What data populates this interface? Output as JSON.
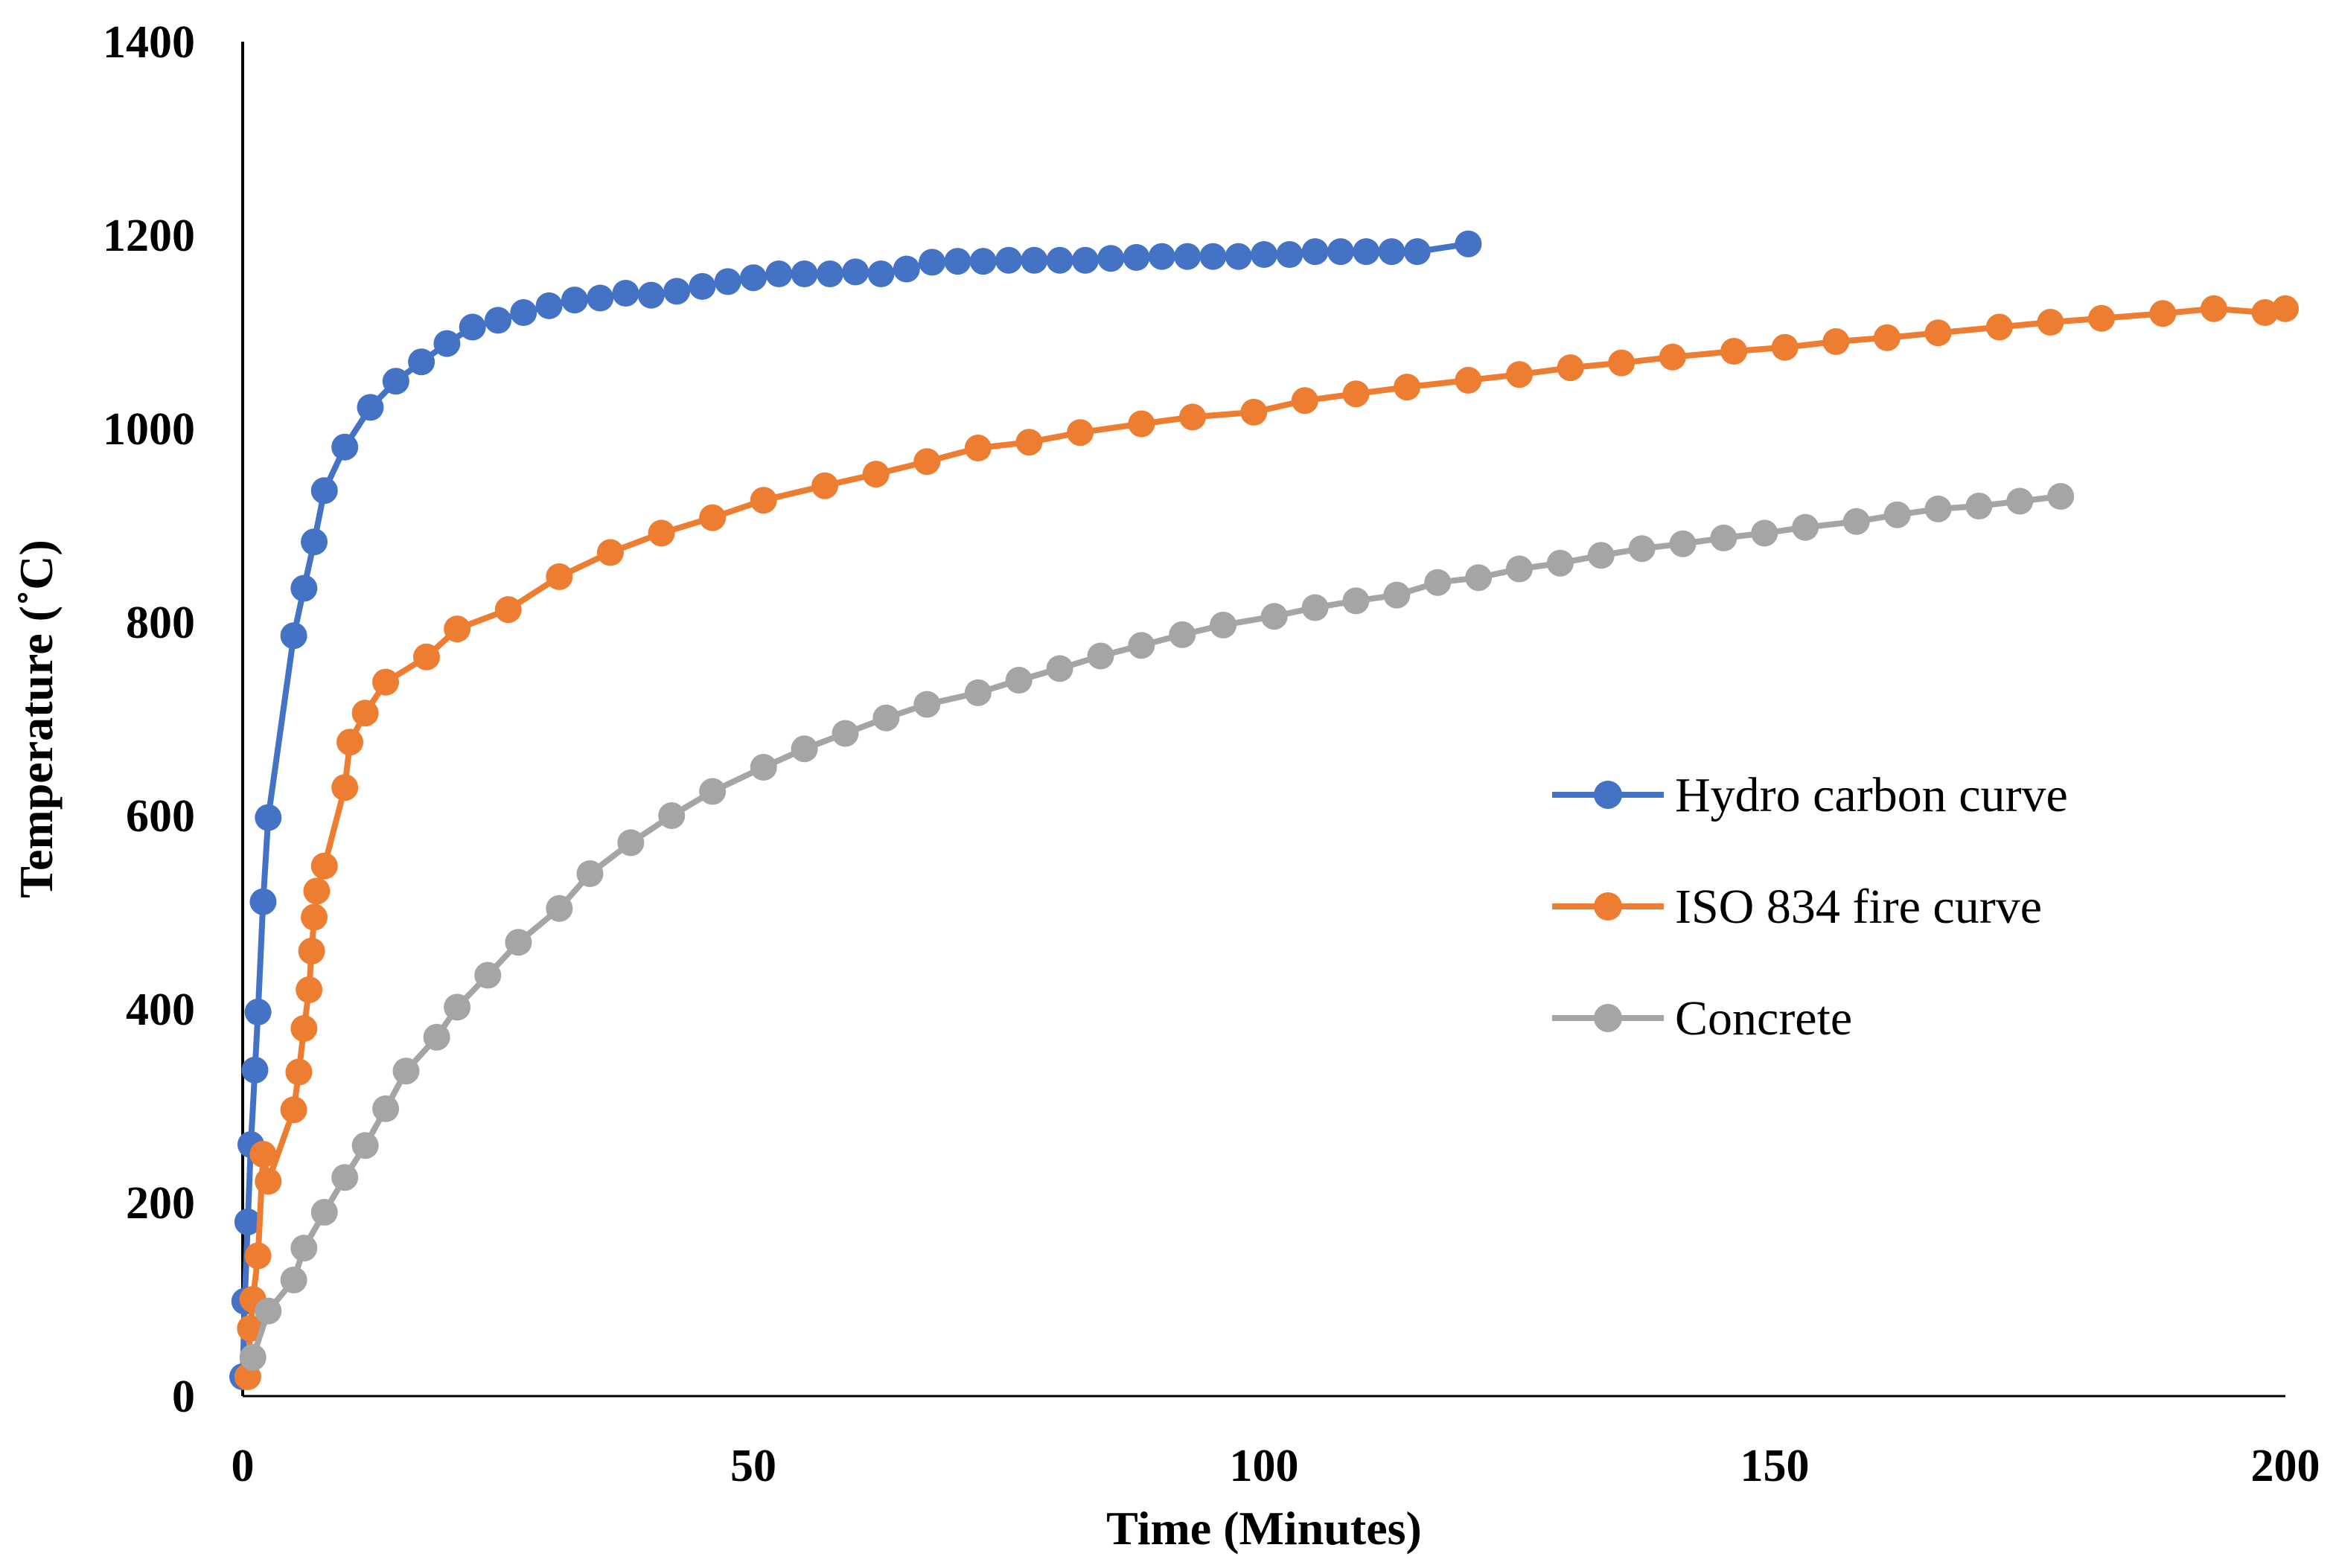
{
  "chart_data": {
    "type": "line",
    "xlabel": "Time (Minutes)",
    "ylabel": "Temperature (˚C)",
    "xlim": [
      0,
      200
    ],
    "ylim": [
      0,
      1400
    ],
    "x_ticks": [
      "0",
      "50",
      "100",
      "150",
      "200"
    ],
    "y_ticks": [
      "0",
      "200",
      "400",
      "600",
      "800",
      "1000",
      "1200",
      "1400"
    ],
    "grid": false,
    "legend_position": "right",
    "series": [
      {
        "name": "Hydro carbon curve",
        "color": "#4472C4",
        "points": [
          [
            0,
            20
          ],
          [
            0.2,
            98
          ],
          [
            0.5,
            180
          ],
          [
            0.8,
            260
          ],
          [
            1.2,
            337
          ],
          [
            1.5,
            397
          ],
          [
            2,
            511
          ],
          [
            2.5,
            598
          ],
          [
            5,
            786
          ],
          [
            6,
            835
          ],
          [
            7,
            883
          ],
          [
            8,
            936
          ],
          [
            10,
            981
          ],
          [
            12.5,
            1022
          ],
          [
            15,
            1049
          ],
          [
            17.5,
            1069
          ],
          [
            20,
            1088
          ],
          [
            22.5,
            1105
          ],
          [
            25,
            1112
          ],
          [
            27.5,
            1120
          ],
          [
            30,
            1127
          ],
          [
            32.5,
            1133
          ],
          [
            35,
            1135
          ],
          [
            37.5,
            1140
          ],
          [
            40,
            1138
          ],
          [
            42.5,
            1142
          ],
          [
            45,
            1147
          ],
          [
            47.5,
            1152
          ],
          [
            50,
            1156
          ],
          [
            52.5,
            1160
          ],
          [
            55,
            1160
          ],
          [
            57.5,
            1160
          ],
          [
            60,
            1162
          ],
          [
            62.5,
            1160
          ],
          [
            65,
            1165
          ],
          [
            67.5,
            1172
          ],
          [
            70,
            1173
          ],
          [
            72.5,
            1173
          ],
          [
            75,
            1174
          ],
          [
            77.5,
            1174
          ],
          [
            80,
            1174
          ],
          [
            82.5,
            1174
          ],
          [
            85,
            1176
          ],
          [
            87.5,
            1177
          ],
          [
            90,
            1178
          ],
          [
            92.5,
            1178
          ],
          [
            95,
            1178
          ],
          [
            97.5,
            1178
          ],
          [
            100,
            1180
          ],
          [
            102.5,
            1180
          ],
          [
            105,
            1183
          ],
          [
            107.5,
            1183
          ],
          [
            110,
            1183
          ],
          [
            112.5,
            1183
          ],
          [
            115,
            1183
          ],
          [
            120,
            1191
          ]
        ]
      },
      {
        "name": "ISO 834 fire curve",
        "color": "#ED7D31",
        "points": [
          [
            0.5,
            20
          ],
          [
            0.75,
            70
          ],
          [
            1,
            100
          ],
          [
            1.5,
            145
          ],
          [
            2,
            250
          ],
          [
            2.5,
            222
          ],
          [
            5,
            296
          ],
          [
            5.5,
            335
          ],
          [
            6,
            380
          ],
          [
            6.5,
            420
          ],
          [
            6.75,
            460
          ],
          [
            7,
            495
          ],
          [
            7.25,
            522
          ],
          [
            8,
            548
          ],
          [
            10,
            629
          ],
          [
            10.5,
            676
          ],
          [
            12,
            706
          ],
          [
            14,
            738
          ],
          [
            18,
            764
          ],
          [
            21,
            793
          ],
          [
            26,
            813
          ],
          [
            31,
            847
          ],
          [
            36,
            872
          ],
          [
            41,
            892
          ],
          [
            46,
            908
          ],
          [
            51,
            926
          ],
          [
            57,
            941
          ],
          [
            62,
            953
          ],
          [
            67,
            966
          ],
          [
            72,
            980
          ],
          [
            77,
            986
          ],
          [
            82,
            996
          ],
          [
            88,
            1005
          ],
          [
            93,
            1012
          ],
          [
            99,
            1017
          ],
          [
            104,
            1029
          ],
          [
            109,
            1036
          ],
          [
            114,
            1043
          ],
          [
            120,
            1050
          ],
          [
            125,
            1056
          ],
          [
            130,
            1063
          ],
          [
            135,
            1068
          ],
          [
            140,
            1074
          ],
          [
            146,
            1080
          ],
          [
            151,
            1084
          ],
          [
            156,
            1090
          ],
          [
            161,
            1094
          ],
          [
            166,
            1099
          ],
          [
            172,
            1105
          ],
          [
            177,
            1110
          ],
          [
            182,
            1114
          ],
          [
            188,
            1119
          ],
          [
            193,
            1124
          ],
          [
            198,
            1120
          ],
          [
            200,
            1124
          ]
        ]
      },
      {
        "name": "Concrete",
        "color": "#A5A5A5",
        "points": [
          [
            1,
            40
          ],
          [
            2.5,
            88
          ],
          [
            5,
            120
          ],
          [
            6,
            153
          ],
          [
            8,
            190
          ],
          [
            10,
            226
          ],
          [
            12,
            259
          ],
          [
            14,
            297
          ],
          [
            16,
            336
          ],
          [
            19,
            371
          ],
          [
            21,
            402
          ],
          [
            24,
            435
          ],
          [
            27,
            469
          ],
          [
            31,
            504
          ],
          [
            34,
            540
          ],
          [
            38,
            572
          ],
          [
            42,
            600
          ],
          [
            46,
            625
          ],
          [
            51,
            650
          ],
          [
            55,
            669
          ],
          [
            59,
            685
          ],
          [
            63,
            701
          ],
          [
            67,
            715
          ],
          [
            72,
            727
          ],
          [
            76,
            740
          ],
          [
            80,
            752
          ],
          [
            84,
            765
          ],
          [
            88,
            776
          ],
          [
            92,
            787
          ],
          [
            96,
            797
          ],
          [
            101,
            806
          ],
          [
            105,
            815
          ],
          [
            109,
            822
          ],
          [
            113,
            828
          ],
          [
            117,
            841
          ],
          [
            121,
            846
          ],
          [
            125,
            855
          ],
          [
            129,
            861
          ],
          [
            133,
            869
          ],
          [
            137,
            876
          ],
          [
            141,
            881
          ],
          [
            145,
            887
          ],
          [
            149,
            892
          ],
          [
            153,
            898
          ],
          [
            158,
            904
          ],
          [
            162,
            911
          ],
          [
            166,
            917
          ],
          [
            170,
            920
          ],
          [
            174,
            925
          ],
          [
            178,
            930
          ]
        ]
      }
    ]
  }
}
